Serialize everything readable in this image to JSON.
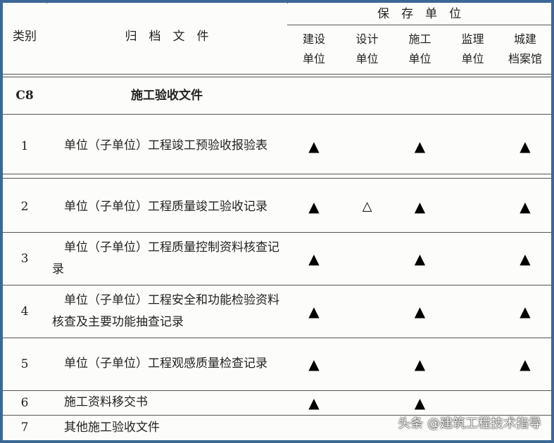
{
  "header": {
    "category": "类别",
    "document": "归　档　文　件",
    "storage": "保　存　单　位",
    "units": [
      "建设\n单位",
      "设计\n单位",
      "施工\n单位",
      "监理\n单位",
      "城建\n档案馆"
    ]
  },
  "section": {
    "code": "C8",
    "title": "施工验收文件"
  },
  "rows": [
    {
      "no": "1",
      "doc": "　单位（子单位）工程竣工预验收报验表",
      "marks": [
        "▲",
        "",
        "▲",
        "",
        "▲"
      ]
    },
    {
      "no": "2",
      "doc": "　单位（子单位）工程质量竣工验收记录",
      "marks": [
        "▲",
        "△",
        "▲",
        "",
        "▲"
      ]
    },
    {
      "no": "3",
      "doc": "　单位（子单位）工程质量控制资料核查记录",
      "marks": [
        "▲",
        "",
        "▲",
        "",
        "▲"
      ]
    },
    {
      "no": "4",
      "doc": "　单位（子单位）工程安全和功能检验资料核查及主要功能抽查记录",
      "marks": [
        "▲",
        "",
        "▲",
        "",
        "▲"
      ]
    },
    {
      "no": "5",
      "doc": "　单位（子单位）工程观感质量检查记录",
      "marks": [
        "▲",
        "",
        "▲",
        "",
        "▲"
      ]
    },
    {
      "no": "6",
      "doc": "　施工资料移交书",
      "marks": [
        "▲",
        "",
        "▲",
        "",
        ""
      ]
    },
    {
      "no": "7",
      "doc": "　其他施工验收文件",
      "marks": [
        "",
        "",
        "",
        "",
        ""
      ]
    }
  ],
  "watermark": "头条 @建筑工程技术指导",
  "colors": {
    "frame": "#3d6896"
  }
}
